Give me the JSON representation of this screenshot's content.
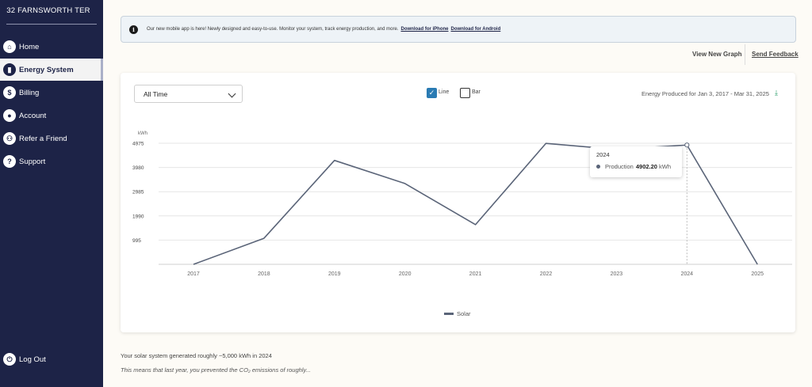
{
  "sidebar": {
    "title": "32 FARNSWORTH TER",
    "items": [
      {
        "label": "Home",
        "icon": "house-icon",
        "glyph": "⌂"
      },
      {
        "label": "Energy System",
        "icon": "bar-chart-icon",
        "glyph": "▮"
      },
      {
        "label": "Billing",
        "icon": "dollar-icon",
        "glyph": "$"
      },
      {
        "label": "Account",
        "icon": "person-icon",
        "glyph": "●"
      },
      {
        "label": "Refer a Friend",
        "icon": "people-icon",
        "glyph": "⚇"
      },
      {
        "label": "Support",
        "icon": "question-icon",
        "glyph": "?"
      }
    ],
    "logout_label": "Log Out",
    "logout_glyph": "⏻"
  },
  "banner": {
    "text": "Our new mobile app is here! Newly designed and easy-to-use. Monitor your system, track energy production, and more.",
    "iphone_link": "Download for iPhone",
    "android_link": "Download for Android",
    "info_glyph": "i"
  },
  "top_links": {
    "new_graph": "View New Graph",
    "feedback": "Send Feedback"
  },
  "controls": {
    "range_select": "All Time",
    "line_label": "Line",
    "bar_label": "Bar",
    "check_glyph": "✓",
    "energy_label": "Energy Produced for Jan 3, 2017 - Mar 31, 2025",
    "download_glyph": "⤓"
  },
  "tooltip": {
    "year": "2024",
    "label": "Production",
    "value": "4902.20",
    "unit": "kWh"
  },
  "legend": {
    "label": "Solar"
  },
  "summary": {
    "line1": "Your solar system generated roughly ~5,000 kWh in 2024",
    "line2": "This means that last year, you prevented the CO₂ emissions of roughly..."
  },
  "chart_data": {
    "type": "line",
    "categories": [
      "2017",
      "2018",
      "2019",
      "2020",
      "2021",
      "2022",
      "2023",
      "2024",
      "2025"
    ],
    "series": [
      {
        "name": "Solar",
        "values": [
          0,
          1070,
          4270,
          3320,
          1630,
          4970,
          4720,
          4902.2,
          0
        ]
      }
    ],
    "yunit": "kWh",
    "yticks": [
      995,
      1990,
      2985,
      3980,
      4975
    ],
    "ylim": [
      0,
      4975
    ],
    "grid": true,
    "legend": "bottom-center",
    "line_color": "#5a6478",
    "highlight_category": "2024"
  }
}
